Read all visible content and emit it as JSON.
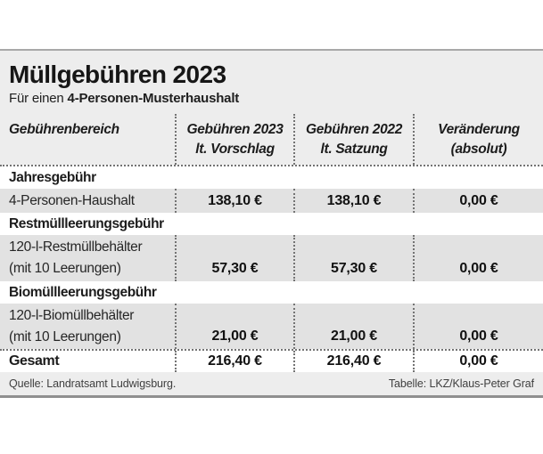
{
  "header": {
    "title": "Müllgebühren 2023",
    "subtitle_prefix": "Für einen ",
    "subtitle_bold": "4-Personen-Musterhaushalt"
  },
  "table": {
    "columns": [
      {
        "line1": "Gebührenbereich",
        "line2": ""
      },
      {
        "line1": "Gebühren 2023",
        "line2": "lt. Vorschlag"
      },
      {
        "line1": "Gebühren 2022",
        "line2": "lt. Satzung"
      },
      {
        "line1": "Veränderung",
        "line2": "(absolut)"
      }
    ],
    "rows": [
      {
        "type": "section",
        "label": "Jahresgebühr"
      },
      {
        "type": "data",
        "label1": "4-Personen-Haushalt",
        "label2": "",
        "v2023": "138,10 €",
        "v2022": "138,10 €",
        "change": "0,00 €"
      },
      {
        "type": "section",
        "label": "Restmüllleerungsgebühr"
      },
      {
        "type": "data",
        "label1": "120-l-Restmüllbehälter",
        "label2": "(mit 10 Leerungen)",
        "v2023": "57,30 €",
        "v2022": "57,30 €",
        "change": "0,00 €"
      },
      {
        "type": "section",
        "label": "Biomüllleerungsgebühr"
      },
      {
        "type": "data",
        "label1": "120-l-Biomüllbehälter",
        "label2": "(mit 10 Leerungen)",
        "v2023": "21,00 €",
        "v2022": "21,00 €",
        "change": "0,00 €"
      },
      {
        "type": "total",
        "label": "Gesamt",
        "v2023": "216,40 €",
        "v2022": "216,40 €",
        "change": "0,00 €"
      }
    ]
  },
  "footer": {
    "source": "Quelle: Landratsamt Ludwigsburg.",
    "credit": "Tabelle: LKZ/Klaus-Peter Graf"
  },
  "colors": {
    "panel_bg": "#ededed",
    "data_row_bg": "#e2e2e2",
    "section_row_bg": "#ffffff",
    "text": "#1c1c1c",
    "panel_border_top": "#a8a8a8",
    "panel_border_bottom": "#8f8f8f",
    "dotted_rule": "#737373"
  },
  "chart_data": {
    "type": "table",
    "title": "Müllgebühren 2023",
    "subtitle": "Für einen 4-Personen-Musterhaushalt",
    "columns": [
      "Gebührenbereich",
      "Gebühren 2023 lt. Vorschlag",
      "Gebühren 2022 lt. Satzung",
      "Veränderung (absolut)"
    ],
    "currency": "EUR",
    "rows": [
      {
        "bereich": "Jahresgebühr",
        "item": null,
        "gebuehr_2023": null,
        "gebuehr_2022": null,
        "veraenderung": null
      },
      {
        "bereich": "Jahresgebühr",
        "item": "4-Personen-Haushalt",
        "gebuehr_2023": 138.1,
        "gebuehr_2022": 138.1,
        "veraenderung": 0.0
      },
      {
        "bereich": "Restmüllleerungsgebühr",
        "item": null,
        "gebuehr_2023": null,
        "gebuehr_2022": null,
        "veraenderung": null
      },
      {
        "bereich": "Restmüllleerungsgebühr",
        "item": "120-l-Restmüllbehälter (mit 10 Leerungen)",
        "gebuehr_2023": 57.3,
        "gebuehr_2022": 57.3,
        "veraenderung": 0.0
      },
      {
        "bereich": "Biomüllleerungsgebühr",
        "item": null,
        "gebuehr_2023": null,
        "gebuehr_2022": null,
        "veraenderung": null
      },
      {
        "bereich": "Biomüllleerungsgebühr",
        "item": "120-l-Biomüllbehälter (mit 10 Leerungen)",
        "gebuehr_2023": 21.0,
        "gebuehr_2022": 21.0,
        "veraenderung": 0.0
      },
      {
        "bereich": "Gesamt",
        "item": "Gesamt",
        "gebuehr_2023": 216.4,
        "gebuehr_2022": 216.4,
        "veraenderung": 0.0
      }
    ],
    "source": "Landratsamt Ludwigsburg",
    "credit": "LKZ/Klaus-Peter Graf",
    "legend_position": "none",
    "grid": "dotted-rules"
  }
}
